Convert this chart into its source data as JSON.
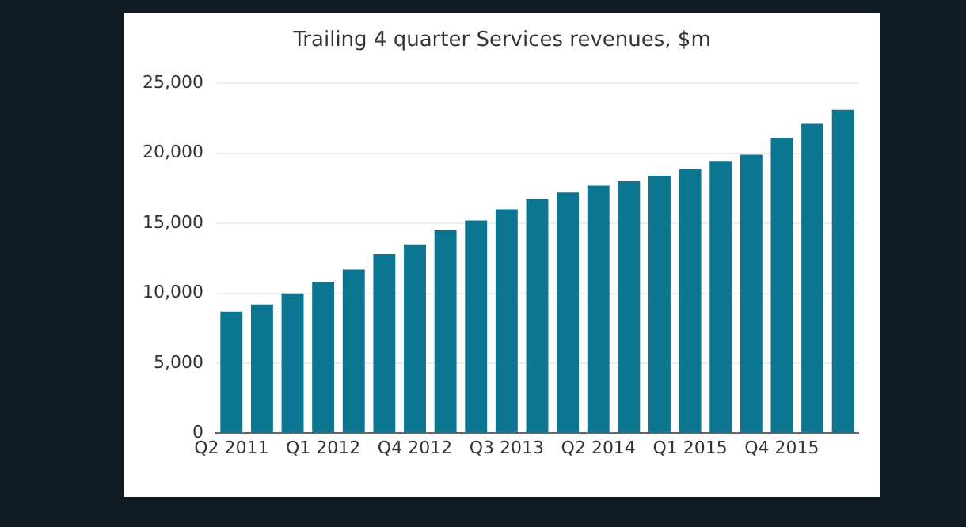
{
  "chart_data": {
    "type": "bar",
    "title": "Trailing 4 quarter Services revenues, $m",
    "categories": [
      "Q2 2011",
      null,
      null,
      "Q1 2012",
      null,
      null,
      "Q4 2012",
      null,
      null,
      "Q3 2013",
      null,
      null,
      "Q2 2014",
      null,
      null,
      "Q1 2015",
      null,
      null,
      "Q4 2015",
      null,
      null
    ],
    "values": [
      8700,
      9200,
      10000,
      10800,
      11700,
      12800,
      13500,
      14500,
      15200,
      16000,
      16700,
      17200,
      17700,
      18000,
      18400,
      18900,
      19400,
      19900,
      21100,
      22100,
      23100
    ],
    "color": "#0c7590",
    "ylim": [
      0,
      25000
    ],
    "yticks": [
      0,
      {
        "value": 5000,
        "label": "5,000"
      },
      {
        "value": 10000,
        "label": "10,000"
      },
      {
        "value": 15000,
        "label": "15,000"
      },
      {
        "value": 20000,
        "label": "20,000"
      },
      {
        "value": 25000,
        "label": "25,000"
      }
    ],
    "grid": "y",
    "legend": false
  }
}
